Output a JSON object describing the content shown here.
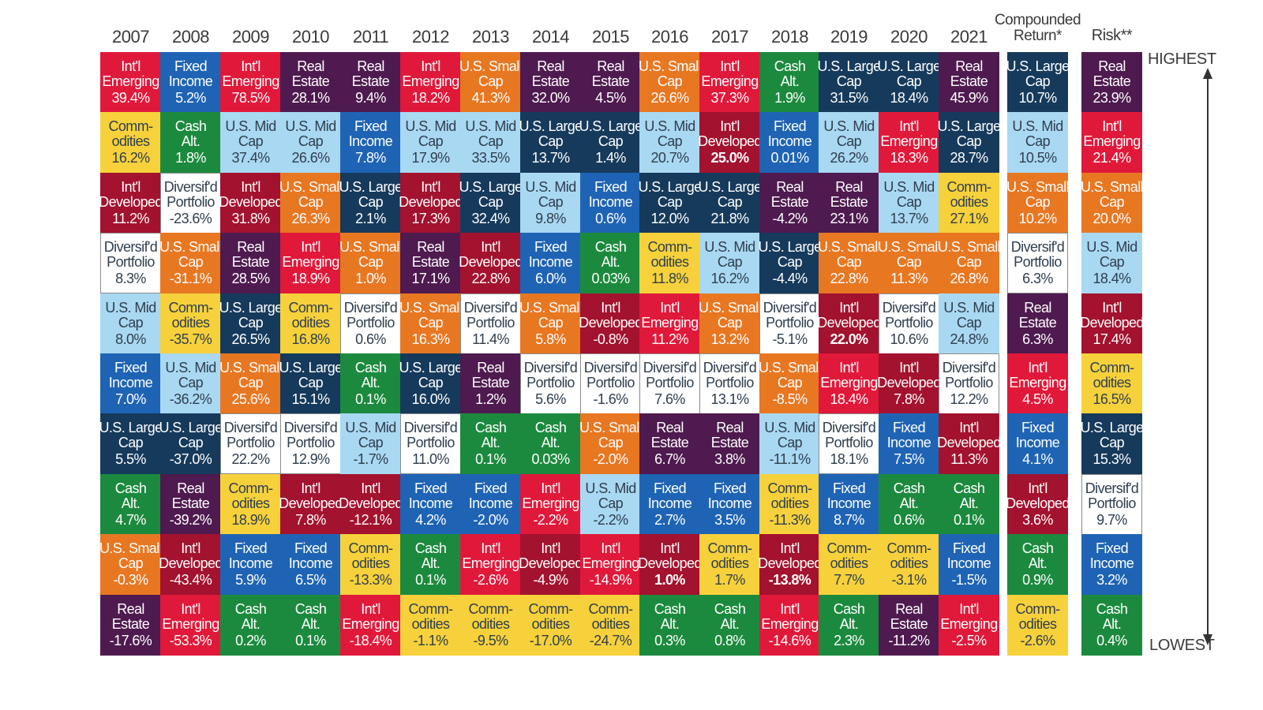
{
  "chart_data": {
    "type": "table",
    "columns": [
      "2007",
      "2008",
      "2009",
      "2010",
      "2011",
      "2012",
      "2013",
      "2014",
      "2015",
      "2016",
      "2017",
      "2018",
      "2019",
      "2020",
      "2021",
      "Compounded\nReturn*",
      "Risk**"
    ],
    "scale_labels": {
      "top": "HIGHEST",
      "bottom": "LOWEST"
    },
    "categories": {
      "em": {
        "lines": [
          "Int'l",
          "Emerging"
        ],
        "color": "#e0193a",
        "light": false
      },
      "fi": {
        "lines": [
          "Fixed",
          "Income"
        ],
        "color": "#1f64b4",
        "light": false
      },
      "re": {
        "lines": [
          "Real",
          "Estate"
        ],
        "color": "#4e1a4f",
        "light": false
      },
      "sm": {
        "lines": [
          "U.S. Small",
          "Cap"
        ],
        "color": "#e87722",
        "light": false
      },
      "lg": {
        "lines": [
          "U.S. Large",
          "Cap"
        ],
        "color": "#163a5c",
        "light": false
      },
      "co": {
        "lines": [
          "Comm-",
          "odities"
        ],
        "color": "#f6d13b",
        "light": true
      },
      "ca": {
        "lines": [
          "Cash",
          "Alt."
        ],
        "color": "#1c8a3e",
        "light": false
      },
      "mid": {
        "lines": [
          "U.S. Mid",
          "Cap"
        ],
        "color": "#a9d8f2",
        "light": true
      },
      "dev": {
        "lines": [
          "Int'l",
          "Developed"
        ],
        "color": "#a3122e",
        "light": false
      },
      "div": {
        "lines": [
          "Diversif'd",
          "Portfolio"
        ],
        "color": "#ffffff",
        "light": true
      }
    },
    "grid": [
      [
        [
          "em",
          "39.4%"
        ],
        [
          "fi",
          "5.2%"
        ],
        [
          "em",
          "78.5%"
        ],
        [
          "re",
          "28.1%"
        ],
        [
          "re",
          "9.4%"
        ],
        [
          "em",
          "18.2%"
        ],
        [
          "sm",
          "41.3%"
        ],
        [
          "re",
          "32.0%"
        ],
        [
          "re",
          "4.5%"
        ],
        [
          "sm",
          "26.6%"
        ],
        [
          "em",
          "37.3%"
        ],
        [
          "ca",
          "1.9%"
        ],
        [
          "lg",
          "31.5%"
        ],
        [
          "lg",
          "18.4%"
        ],
        [
          "re",
          "45.9%"
        ],
        [
          "lg",
          "10.7%"
        ],
        [
          "re",
          "23.9%"
        ]
      ],
      [
        [
          "co",
          "16.2%"
        ],
        [
          "ca",
          "1.8%"
        ],
        [
          "mid",
          "37.4%"
        ],
        [
          "mid",
          "26.6%"
        ],
        [
          "fi",
          "7.8%"
        ],
        [
          "mid",
          "17.9%"
        ],
        [
          "mid",
          "33.5%"
        ],
        [
          "lg",
          "13.7%"
        ],
        [
          "lg",
          "1.4%"
        ],
        [
          "mid",
          "20.7%"
        ],
        [
          "dev",
          "25.0%",
          true
        ],
        [
          "fi",
          "0.01%"
        ],
        [
          "mid",
          "26.2%"
        ],
        [
          "em",
          "18.3%"
        ],
        [
          "lg",
          "28.7%"
        ],
        [
          "mid",
          "10.5%"
        ],
        [
          "em",
          "21.4%"
        ]
      ],
      [
        [
          "dev",
          "11.2%"
        ],
        [
          "div",
          "-23.6%"
        ],
        [
          "dev",
          "31.8%"
        ],
        [
          "sm",
          "26.3%"
        ],
        [
          "lg",
          "2.1%"
        ],
        [
          "dev",
          "17.3%"
        ],
        [
          "lg",
          "32.4%"
        ],
        [
          "mid",
          "9.8%"
        ],
        [
          "fi",
          "0.6%"
        ],
        [
          "lg",
          "12.0%"
        ],
        [
          "lg",
          "21.8%"
        ],
        [
          "re",
          "-4.2%"
        ],
        [
          "re",
          "23.1%"
        ],
        [
          "mid",
          "13.7%"
        ],
        [
          "co",
          "27.1%"
        ],
        [
          "sm",
          "10.2%"
        ],
        [
          "sm",
          "20.0%"
        ]
      ],
      [
        [
          "div",
          "8.3%"
        ],
        [
          "sm",
          "-31.1%"
        ],
        [
          "re",
          "28.5%"
        ],
        [
          "em",
          "18.9%"
        ],
        [
          "sm",
          "1.0%"
        ],
        [
          "re",
          "17.1%"
        ],
        [
          "dev",
          "22.8%"
        ],
        [
          "fi",
          "6.0%"
        ],
        [
          "ca",
          "0.03%"
        ],
        [
          "co",
          "11.8%"
        ],
        [
          "mid",
          "16.2%"
        ],
        [
          "lg",
          "-4.4%"
        ],
        [
          "sm",
          "22.8%"
        ],
        [
          "sm",
          "11.3%"
        ],
        [
          "sm",
          "26.8%"
        ],
        [
          "div",
          "6.3%"
        ],
        [
          "mid",
          "18.4%"
        ]
      ],
      [
        [
          "mid",
          "8.0%"
        ],
        [
          "co",
          "-35.7%"
        ],
        [
          "lg",
          "26.5%"
        ],
        [
          "co",
          "16.8%"
        ],
        [
          "div",
          "0.6%"
        ],
        [
          "sm",
          "16.3%"
        ],
        [
          "div",
          "11.4%"
        ],
        [
          "sm",
          "5.8%"
        ],
        [
          "dev",
          "-0.8%"
        ],
        [
          "em",
          "11.2%"
        ],
        [
          "sm",
          "13.2%"
        ],
        [
          "div",
          "-5.1%"
        ],
        [
          "dev",
          "22.0%",
          true
        ],
        [
          "div",
          "10.6%"
        ],
        [
          "mid",
          "24.8%"
        ],
        [
          "re",
          "6.3%"
        ],
        [
          "dev",
          "17.4%"
        ]
      ],
      [
        [
          "fi",
          "7.0%"
        ],
        [
          "mid",
          "-36.2%"
        ],
        [
          "sm",
          "25.6%"
        ],
        [
          "lg",
          "15.1%"
        ],
        [
          "ca",
          "0.1%"
        ],
        [
          "lg",
          "16.0%"
        ],
        [
          "re",
          "1.2%"
        ],
        [
          "div",
          "5.6%"
        ],
        [
          "div",
          "-1.6%"
        ],
        [
          "div",
          "7.6%"
        ],
        [
          "div",
          "13.1%"
        ],
        [
          "sm",
          "-8.5%"
        ],
        [
          "em",
          "18.4%"
        ],
        [
          "dev",
          "7.8%"
        ],
        [
          "div",
          "12.2%"
        ],
        [
          "em",
          "4.5%"
        ],
        [
          "co",
          "16.5%"
        ]
      ],
      [
        [
          "lg",
          "5.5%"
        ],
        [
          "lg",
          "-37.0%"
        ],
        [
          "div",
          "22.2%"
        ],
        [
          "div",
          "12.9%"
        ],
        [
          "mid",
          "-1.7%"
        ],
        [
          "div",
          "11.0%"
        ],
        [
          "ca",
          "0.1%"
        ],
        [
          "ca",
          "0.03%"
        ],
        [
          "sm",
          "-2.0%"
        ],
        [
          "re",
          "6.7%"
        ],
        [
          "re",
          "3.8%"
        ],
        [
          "mid",
          "-11.1%"
        ],
        [
          "div",
          "18.1%"
        ],
        [
          "fi",
          "7.5%"
        ],
        [
          "dev",
          "11.3%"
        ],
        [
          "fi",
          "4.1%"
        ],
        [
          "lg",
          "15.3%"
        ]
      ],
      [
        [
          "ca",
          "4.7%"
        ],
        [
          "re",
          "-39.2%"
        ],
        [
          "co",
          "18.9%"
        ],
        [
          "dev",
          "7.8%"
        ],
        [
          "dev",
          "-12.1%"
        ],
        [
          "fi",
          "4.2%"
        ],
        [
          "fi",
          "-2.0%"
        ],
        [
          "em",
          "-2.2%"
        ],
        [
          "mid",
          "-2.2%"
        ],
        [
          "fi",
          "2.7%"
        ],
        [
          "fi",
          "3.5%"
        ],
        [
          "co",
          "-11.3%"
        ],
        [
          "fi",
          "8.7%"
        ],
        [
          "ca",
          "0.6%"
        ],
        [
          "ca",
          "0.1%"
        ],
        [
          "dev",
          "3.6%"
        ],
        [
          "div",
          "9.7%"
        ]
      ],
      [
        [
          "sm",
          "-0.3%"
        ],
        [
          "dev",
          "-43.4%"
        ],
        [
          "fi",
          "5.9%"
        ],
        [
          "fi",
          "6.5%"
        ],
        [
          "co",
          "-13.3%"
        ],
        [
          "ca",
          "0.1%"
        ],
        [
          "em",
          "-2.6%"
        ],
        [
          "dev",
          "-4.9%"
        ],
        [
          "em",
          "-14.9%"
        ],
        [
          "dev",
          "1.0%",
          true
        ],
        [
          "co",
          "1.7%"
        ],
        [
          "dev",
          "-13.8%",
          true
        ],
        [
          "co",
          "7.7%"
        ],
        [
          "co",
          "-3.1%"
        ],
        [
          "fi",
          "-1.5%"
        ],
        [
          "ca",
          "0.9%"
        ],
        [
          "fi",
          "3.2%"
        ]
      ],
      [
        [
          "re",
          "-17.6%"
        ],
        [
          "em",
          "-53.3%"
        ],
        [
          "ca",
          "0.2%"
        ],
        [
          "ca",
          "0.1%"
        ],
        [
          "em",
          "-18.4%"
        ],
        [
          "co",
          "-1.1%"
        ],
        [
          "co",
          "-9.5%"
        ],
        [
          "co",
          "-17.0%"
        ],
        [
          "co",
          "-24.7%"
        ],
        [
          "ca",
          "0.3%"
        ],
        [
          "ca",
          "0.8%"
        ],
        [
          "em",
          "-14.6%"
        ],
        [
          "ca",
          "2.3%"
        ],
        [
          "re",
          "-11.2%"
        ],
        [
          "em",
          "-2.5%"
        ],
        [
          "co",
          "-2.6%"
        ],
        [
          "ca",
          "0.4%"
        ]
      ]
    ]
  }
}
